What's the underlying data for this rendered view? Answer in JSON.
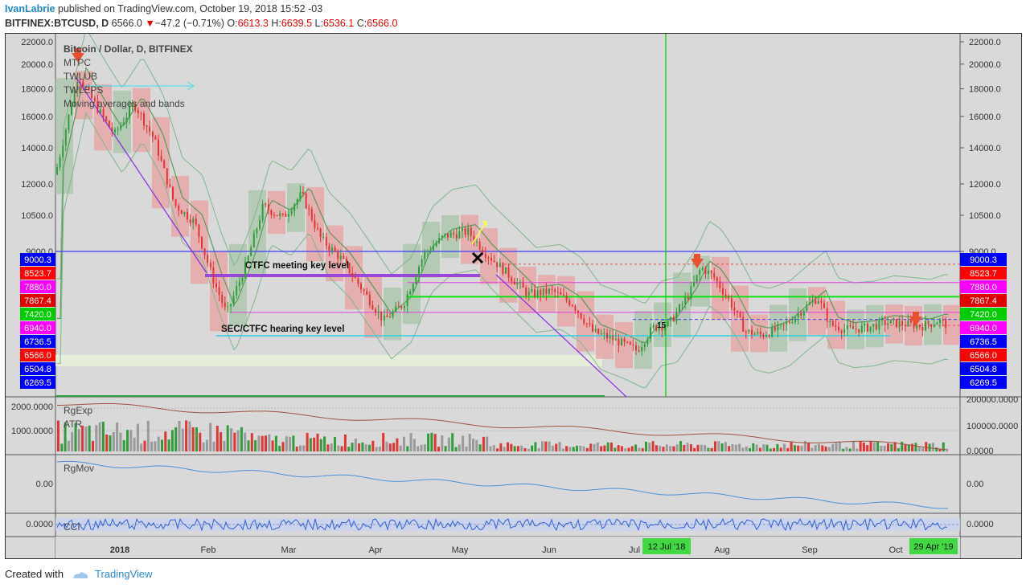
{
  "header": {
    "username": "IvanLabrie",
    "published": " published on TradingView.com, October 19, 2018 15:52 -03",
    "symbol": "BITFINEX:BTCUSD, D",
    "price": "6566.0",
    "change_arrow": "▼",
    "change": "−47.2 (−0.71%)",
    "o_label": "O:",
    "o": "6613.3",
    "h_label": "H:",
    "h": "6639.5",
    "l_label": "L:",
    "l": "6536.1",
    "c_label": "C:",
    "c": "6566.0"
  },
  "legend": {
    "title": "Bitcoin / Dollar, D, BITFINEX",
    "items": [
      "MTPC",
      "TWLUB",
      "TWLEPS",
      "Moving averages and bands"
    ]
  },
  "annotations": {
    "ctfc": "CTFC meeting key level",
    "sec": "SEC/CTFC hearing key level",
    "fifteen": "15"
  },
  "chart_data": {
    "type": "candlestick",
    "title": "Bitcoin / Dollar, D, BITFINEX",
    "y_scale": "log",
    "yaxis_ticks": [
      22000,
      20000,
      18000,
      16000,
      14000,
      12000,
      10500,
      9000
    ],
    "yaxis_tick_labels": [
      "22000.0",
      "20000.0",
      "18000.0",
      "16000.0",
      "14000.0",
      "12000.0",
      "10500.0",
      "9000.0"
    ],
    "price_labels": [
      {
        "value": 9000.3,
        "label": "9000.3",
        "color": "#0000ff"
      },
      {
        "value": 8523.7,
        "label": "8523.7",
        "color": "#ff0000"
      },
      {
        "value": 7880.0,
        "label": "7880.0",
        "color": "#ff00ff"
      },
      {
        "value": 7867.4,
        "label": "7867.4",
        "color": "#e00000"
      },
      {
        "value": 7420.0,
        "label": "7420.0",
        "color": "#00cc00"
      },
      {
        "value": 6940.0,
        "label": "6940.0",
        "color": "#ff00ff"
      },
      {
        "value": 6736.5,
        "label": "6736.5",
        "color": "#0000ff"
      },
      {
        "value": 6566.0,
        "label": "6566.0",
        "color": "#ff0000"
      },
      {
        "value": 6504.8,
        "label": "6504.8",
        "color": "#0000ff"
      },
      {
        "value": 6269.5,
        "label": "6269.5",
        "color": "#0000ff"
      }
    ],
    "x_tick_labels": [
      "2018",
      "Feb",
      "Mar",
      "Apr",
      "May",
      "Jun",
      "Jul",
      "Aug",
      "Sep",
      "Oct"
    ],
    "highlighted_dates": [
      "12 Jul '18",
      "29 Apr '19"
    ],
    "closes_approx": [
      {
        "date": "2017-12-17",
        "close": 19100
      },
      {
        "date": "2018-01-06",
        "close": 16900
      },
      {
        "date": "2018-02-06",
        "close": 6900
      },
      {
        "date": "2018-03-05",
        "close": 11500
      },
      {
        "date": "2018-04-06",
        "close": 6600
      },
      {
        "date": "2018-05-05",
        "close": 9800
      },
      {
        "date": "2018-06-29",
        "close": 5900
      },
      {
        "date": "2018-07-25",
        "close": 8400
      },
      {
        "date": "2018-08-14",
        "close": 6200
      },
      {
        "date": "2018-09-05",
        "close": 7400
      },
      {
        "date": "2018-10-19",
        "close": 6566
      }
    ],
    "indicators": [
      {
        "name": "RgExp",
        "ticks": [
          "2000.0000",
          "1000.0000"
        ]
      },
      {
        "name": "ATR",
        "right_ticks": [
          "200000.0000",
          "100000.0000",
          "0.0000"
        ]
      },
      {
        "name": "RgMov",
        "ticks": [
          "0.00"
        ]
      },
      {
        "name": "CCI",
        "ticks": [
          "0.0000"
        ]
      }
    ]
  },
  "footer": {
    "created_with": "Created with",
    "brand": "TradingView"
  },
  "colors": {
    "up": "#2e9e3a",
    "down": "#e23434",
    "bear_box": "#e8a0a0",
    "bull_box": "#a8c4a8",
    "band": "#7fb88a",
    "label_blue": "#1e88c7"
  }
}
